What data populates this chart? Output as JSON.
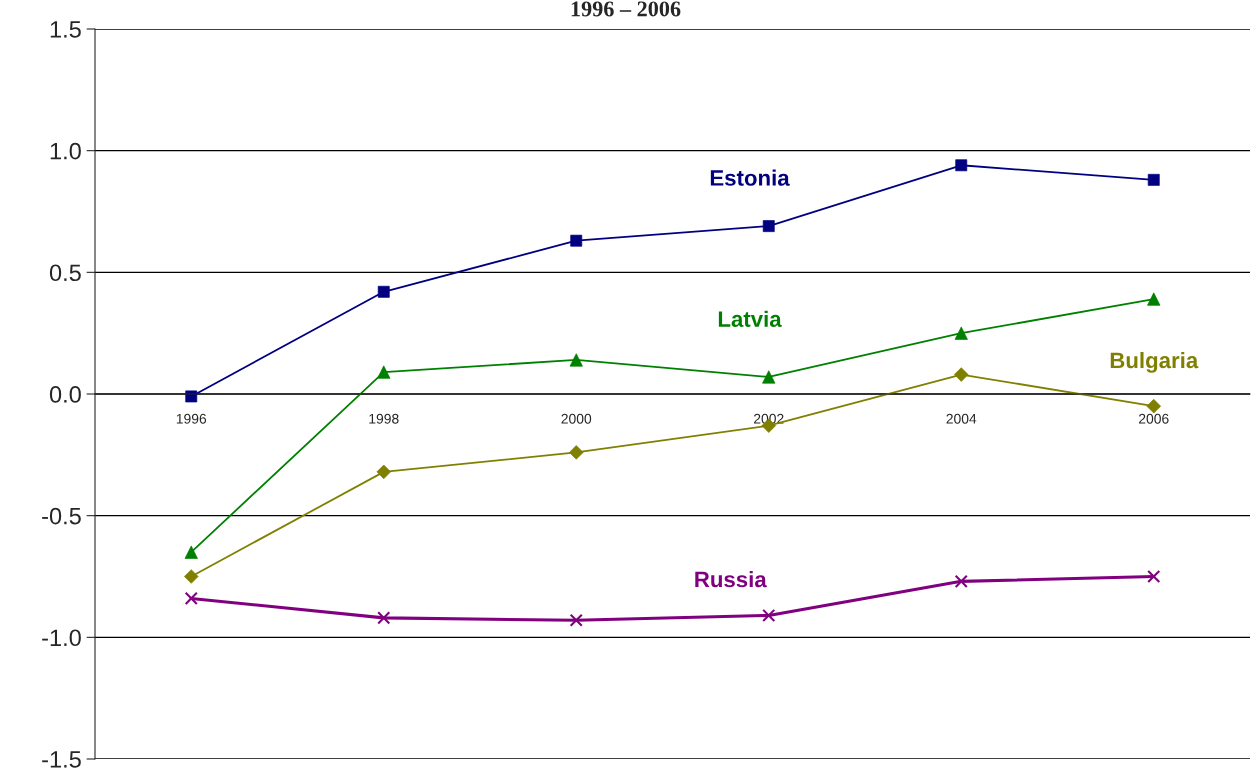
{
  "chart_data": {
    "type": "line",
    "title": "1996 – 2006",
    "categories": [
      "1996",
      "1998",
      "2000",
      "2002",
      "2004",
      "2006"
    ],
    "series": [
      {
        "name": "Estonia",
        "color": "#000080",
        "marker": "square",
        "values": [
          -0.01,
          0.42,
          0.63,
          0.69,
          0.94,
          0.88
        ]
      },
      {
        "name": "Latvia",
        "color": "#008000",
        "marker": "triangle",
        "values": [
          -0.65,
          0.09,
          0.14,
          0.07,
          0.25,
          0.39
        ]
      },
      {
        "name": "Bulgaria",
        "color": "#808000",
        "marker": "diamond",
        "values": [
          -0.75,
          -0.32,
          -0.24,
          -0.13,
          0.08,
          -0.05
        ]
      },
      {
        "name": "Russia",
        "color": "#800080",
        "marker": "cross",
        "values": [
          -0.84,
          -0.92,
          -0.93,
          -0.91,
          -0.77,
          -0.75
        ]
      }
    ],
    "ylim": [
      -1.5,
      1.5
    ],
    "yticks": [
      {
        "value": -1.5,
        "label": "-1.5"
      },
      {
        "value": -1.0,
        "label": "-1.0"
      },
      {
        "value": -0.5,
        "label": "-0.5"
      },
      {
        "value": 0.0,
        "label": "0.0"
      },
      {
        "value": 0.5,
        "label": "0.5"
      },
      {
        "value": 1.0,
        "label": "1.0"
      },
      {
        "value": 1.5,
        "label": "1.5"
      }
    ],
    "grid": "y",
    "legend": false,
    "line_style": "solid"
  }
}
